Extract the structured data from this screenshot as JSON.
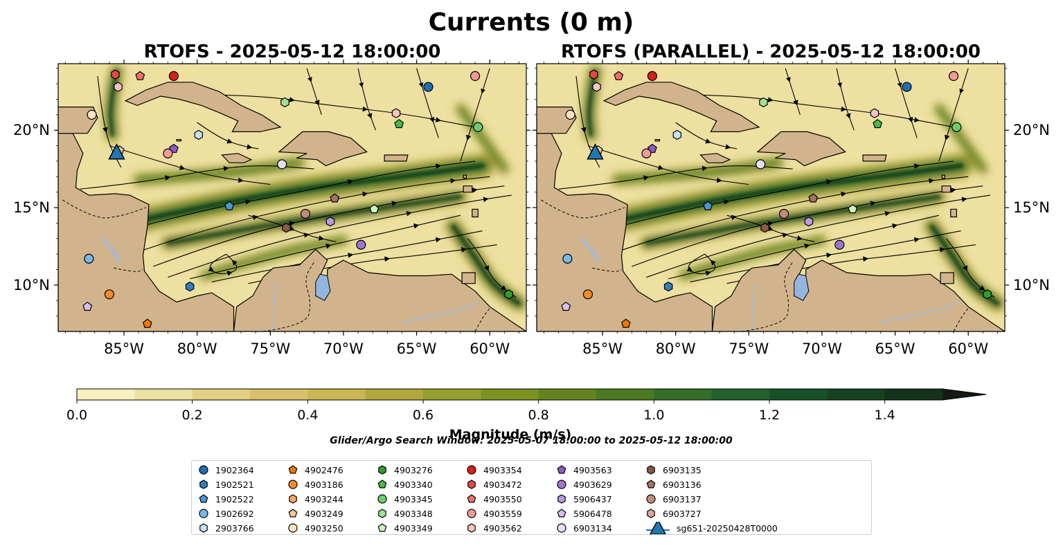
{
  "figure": {
    "suptitle": "Currents (0 m)",
    "subtitle_left": "RTOFS - 2025-05-12 18:00:00",
    "subtitle_right": "RTOFS (PARALLEL) - 2025-05-12 18:00:00",
    "search_window": "Glider/Argo Search Window: 2025-05-07 18:00:00 to 2025-05-12 18:00:00",
    "colorbar_label": "Magnitude (m/s)"
  },
  "chart_data": {
    "type": "map-contourf",
    "variable": "surface current magnitude",
    "units": "m/s",
    "lon_range": [
      -89.5,
      -57.5
    ],
    "lat_range": [
      7,
      24.3
    ],
    "lon_ticks": [
      "85°W",
      "80°W",
      "75°W",
      "70°W",
      "65°W",
      "60°W"
    ],
    "lat_ticks": [
      "20°N",
      "15°N",
      "10°N"
    ],
    "lon_tick_values": [
      -85,
      -80,
      -75,
      -70,
      -65,
      -60
    ],
    "lat_tick_values": [
      20,
      15,
      10
    ],
    "colorbar_ticks": [
      "0.0",
      "0.2",
      "0.4",
      "0.6",
      "0.8",
      "1.0",
      "1.2",
      "1.4"
    ],
    "levels": [
      0,
      0.1,
      0.2,
      0.3,
      0.4,
      0.5,
      0.6,
      0.7,
      0.8,
      0.9,
      1.0,
      1.1,
      1.2,
      1.3,
      1.4,
      1.5
    ],
    "level_colors": [
      "#f7f1c0",
      "#ede0a0",
      "#e3cf82",
      "#d8c068",
      "#cab754",
      "#b0a83e",
      "#959f2c",
      "#7b9222",
      "#63851e",
      "#4b7a22",
      "#346e29",
      "#21612d",
      "#175126",
      "#16421f",
      "#15331a"
    ],
    "panels": [
      {
        "name": "RTOFS",
        "floats": [
          {
            "id": "4903354",
            "lon": -81.6,
            "lat": 23.5
          },
          {
            "id": "4903472",
            "lon": -85.6,
            "lat": 23.6
          },
          {
            "id": "4903550",
            "lon": -83.9,
            "lat": 23.5
          },
          {
            "id": "4903562",
            "lon": -85.4,
            "lat": 22.8
          },
          {
            "id": "1902364",
            "lon": -64.2,
            "lat": 22.8
          },
          {
            "id": "4903559",
            "lon": -61.0,
            "lat": 23.5
          },
          {
            "id": "4903250",
            "lon": -87.2,
            "lat": 21.0
          },
          {
            "id": "4903348",
            "lon": -74.0,
            "lat": 21.8
          },
          {
            "id": "4903562",
            "lon": -66.4,
            "lat": 21.1
          },
          {
            "id": "4903340",
            "lon": -66.2,
            "lat": 20.4
          },
          {
            "id": "4903345",
            "lon": -60.8,
            "lat": 20.2
          },
          {
            "id": "2903766",
            "lon": -79.9,
            "lat": 19.7
          },
          {
            "id": "4903563",
            "lon": -81.6,
            "lat": 18.8
          },
          {
            "id": "4903559",
            "lon": -82.0,
            "lat": 18.5
          },
          {
            "id": "4903249",
            "lon": -85.3,
            "lat": 18.7
          },
          {
            "id": "6903134",
            "lon": -74.2,
            "lat": 17.8
          },
          {
            "id": "1902522",
            "lon": -77.8,
            "lat": 15.1
          },
          {
            "id": "6903136",
            "lon": -70.6,
            "lat": 15.6
          },
          {
            "id": "4903349",
            "lon": -67.9,
            "lat": 14.9
          },
          {
            "id": "6903137",
            "lon": -72.6,
            "lat": 14.6
          },
          {
            "id": "5906437",
            "lon": -70.9,
            "lat": 14.1
          },
          {
            "id": "6903135",
            "lon": -73.9,
            "lat": 13.7
          },
          {
            "id": "4903629",
            "lon": -68.8,
            "lat": 12.6
          },
          {
            "id": "1902692",
            "lon": -87.4,
            "lat": 11.7
          },
          {
            "id": "1902521",
            "lon": -80.5,
            "lat": 9.9
          },
          {
            "id": "4903186",
            "lon": -86.0,
            "lat": 9.4
          },
          {
            "id": "5906478",
            "lon": -87.5,
            "lat": 8.6
          },
          {
            "id": "4903276",
            "lon": -58.7,
            "lat": 9.4
          },
          {
            "id": "4902476",
            "lon": -83.4,
            "lat": 7.5
          }
        ],
        "glider": {
          "id": "sg651-20250428T0000",
          "lon": -85.5,
          "lat": 18.5
        }
      },
      {
        "name": "RTOFS (PARALLEL)",
        "floats": [
          {
            "id": "4903354",
            "lon": -81.6,
            "lat": 23.5
          },
          {
            "id": "4903472",
            "lon": -85.6,
            "lat": 23.6
          },
          {
            "id": "4903550",
            "lon": -83.9,
            "lat": 23.5
          },
          {
            "id": "4903562",
            "lon": -85.4,
            "lat": 22.8
          },
          {
            "id": "1902364",
            "lon": -64.2,
            "lat": 22.8
          },
          {
            "id": "4903559",
            "lon": -61.0,
            "lat": 23.5
          },
          {
            "id": "4903250",
            "lon": -87.2,
            "lat": 21.0
          },
          {
            "id": "4903348",
            "lon": -74.0,
            "lat": 21.8
          },
          {
            "id": "4903562",
            "lon": -66.4,
            "lat": 21.1
          },
          {
            "id": "4903340",
            "lon": -66.2,
            "lat": 20.4
          },
          {
            "id": "4903345",
            "lon": -60.8,
            "lat": 20.2
          },
          {
            "id": "2903766",
            "lon": -79.9,
            "lat": 19.7
          },
          {
            "id": "4903563",
            "lon": -81.6,
            "lat": 18.8
          },
          {
            "id": "4903559",
            "lon": -82.0,
            "lat": 18.5
          },
          {
            "id": "4903249",
            "lon": -85.3,
            "lat": 18.7
          },
          {
            "id": "6903134",
            "lon": -74.2,
            "lat": 17.8
          },
          {
            "id": "1902522",
            "lon": -77.8,
            "lat": 15.1
          },
          {
            "id": "6903136",
            "lon": -70.6,
            "lat": 15.6
          },
          {
            "id": "4903349",
            "lon": -67.9,
            "lat": 14.9
          },
          {
            "id": "6903137",
            "lon": -72.6,
            "lat": 14.6
          },
          {
            "id": "5906437",
            "lon": -70.9,
            "lat": 14.1
          },
          {
            "id": "6903135",
            "lon": -73.9,
            "lat": 13.7
          },
          {
            "id": "4903629",
            "lon": -68.8,
            "lat": 12.6
          },
          {
            "id": "1902692",
            "lon": -87.4,
            "lat": 11.7
          },
          {
            "id": "1902521",
            "lon": -80.5,
            "lat": 9.9
          },
          {
            "id": "4903186",
            "lon": -86.0,
            "lat": 9.4
          },
          {
            "id": "5906478",
            "lon": -87.5,
            "lat": 8.6
          },
          {
            "id": "4903276",
            "lon": -58.7,
            "lat": 9.4
          },
          {
            "id": "4902476",
            "lon": -83.4,
            "lat": 7.5
          }
        ],
        "glider": {
          "id": "sg651-20250428T0000",
          "lon": -85.5,
          "lat": 18.5
        }
      }
    ]
  },
  "legend": [
    {
      "label": "1902364",
      "marker": "circle",
      "color": "#1f6fb2"
    },
    {
      "label": "1902521",
      "marker": "hexagon",
      "color": "#2f7fc1"
    },
    {
      "label": "1902522",
      "marker": "pentagon",
      "color": "#4a98d6"
    },
    {
      "label": "1902692",
      "marker": "circle",
      "color": "#7bb8e6"
    },
    {
      "label": "2903766",
      "marker": "hexagon",
      "color": "#c6e4f7"
    },
    {
      "label": "4902476",
      "marker": "pentagon",
      "color": "#f07800"
    },
    {
      "label": "4903186",
      "marker": "circle",
      "color": "#f58a2a"
    },
    {
      "label": "4903244",
      "marker": "hexagon",
      "color": "#f8a85e"
    },
    {
      "label": "4903249",
      "marker": "pentagon",
      "color": "#fbc898"
    },
    {
      "label": "4903250",
      "marker": "circle",
      "color": "#fde2c6"
    },
    {
      "label": "4903276",
      "marker": "hexagon",
      "color": "#2f9e2f"
    },
    {
      "label": "4903340",
      "marker": "pentagon",
      "color": "#48b848"
    },
    {
      "label": "4903345",
      "marker": "circle",
      "color": "#6ccd6c"
    },
    {
      "label": "4903348",
      "marker": "hexagon",
      "color": "#a2e09a"
    },
    {
      "label": "4903349",
      "marker": "pentagon",
      "color": "#ccf2c6"
    },
    {
      "label": "4903354",
      "marker": "circle",
      "color": "#d62020"
    },
    {
      "label": "4903472",
      "marker": "hexagon",
      "color": "#e44848"
    },
    {
      "label": "4903550",
      "marker": "pentagon",
      "color": "#f06e6e"
    },
    {
      "label": "4903559",
      "marker": "circle",
      "color": "#f29a9a"
    },
    {
      "label": "4903562",
      "marker": "hexagon",
      "color": "#f8c4c4"
    },
    {
      "label": "4903563",
      "marker": "pentagon",
      "color": "#8a5cc4"
    },
    {
      "label": "4903629",
      "marker": "circle",
      "color": "#9f74d0"
    },
    {
      "label": "5906437",
      "marker": "hexagon",
      "color": "#b89ae0"
    },
    {
      "label": "5906478",
      "marker": "pentagon",
      "color": "#d4bff0"
    },
    {
      "label": "6903134",
      "marker": "circle",
      "color": "#eadcfb"
    },
    {
      "label": "6903135",
      "marker": "hexagon",
      "color": "#8a5a44"
    },
    {
      "label": "6903136",
      "marker": "pentagon",
      "color": "#a27262"
    },
    {
      "label": "6903137",
      "marker": "circle",
      "color": "#c08c7e"
    },
    {
      "label": "6903727",
      "marker": "hexagon",
      "color": "#dca89a"
    },
    {
      "label": "sg651-20250428T0000",
      "marker": "triangle",
      "color": "#1f77b4"
    }
  ],
  "colors": {
    "land": "#d2b48c",
    "lake": "#93b5e0",
    "river": "#a7b9d2"
  }
}
